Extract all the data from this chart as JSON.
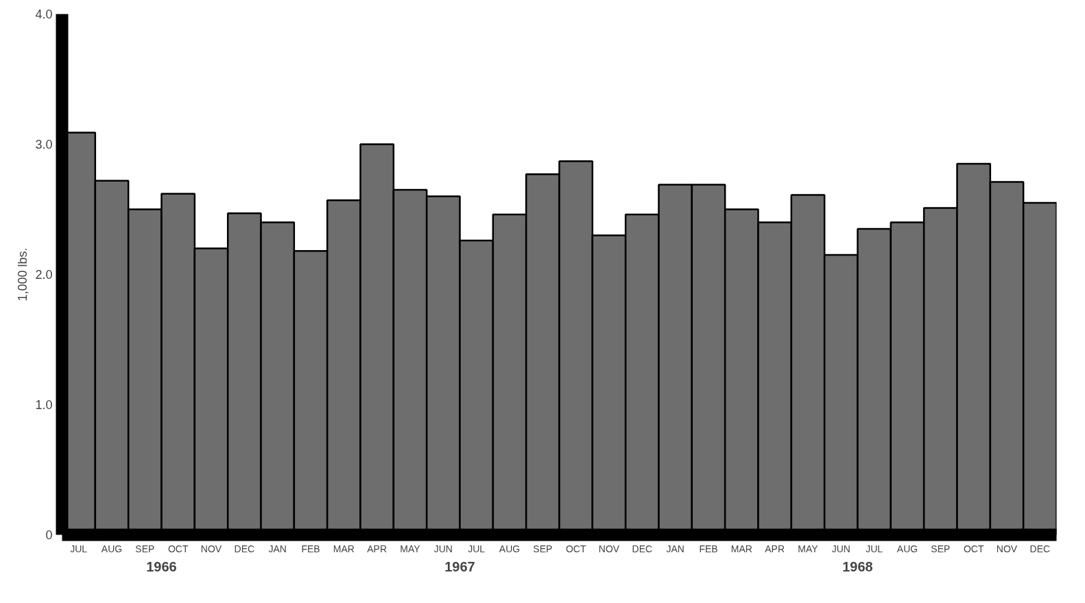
{
  "chart_data": {
    "type": "bar",
    "ylabel": "1,000 lbs.",
    "categories": [
      "JUL",
      "AUG",
      "SEP",
      "OCT",
      "NOV",
      "DEC",
      "JAN",
      "FEB",
      "MAR",
      "APR",
      "MAY",
      "JUN",
      "JUL",
      "AUG",
      "SEP",
      "OCT",
      "NOV",
      "DEC",
      "JAN",
      "FEB",
      "MAR",
      "APR",
      "MAY",
      "JUN",
      "JUL",
      "AUG",
      "SEP",
      "OCT",
      "NOV",
      "DEC"
    ],
    "values": [
      3.09,
      2.72,
      2.5,
      2.62,
      2.2,
      2.47,
      2.4,
      2.18,
      2.57,
      3.0,
      2.65,
      2.6,
      2.26,
      2.46,
      2.77,
      2.87,
      2.3,
      2.46,
      2.69,
      2.69,
      2.5,
      2.4,
      2.61,
      2.15,
      2.35,
      2.4,
      2.51,
      2.85,
      2.71,
      2.55
    ],
    "color": "#6e6e6e",
    "ylim": [
      0,
      4.0
    ],
    "yticks": [
      {
        "value": 0,
        "label": "0"
      },
      {
        "value": 1,
        "label": "1.0"
      },
      {
        "value": 2,
        "label": "2.0"
      },
      {
        "value": 3,
        "label": "3.0"
      },
      {
        "value": 4,
        "label": "4.0"
      }
    ],
    "annotations": [
      "1966",
      "1967",
      "1968"
    ],
    "grid": false
  }
}
